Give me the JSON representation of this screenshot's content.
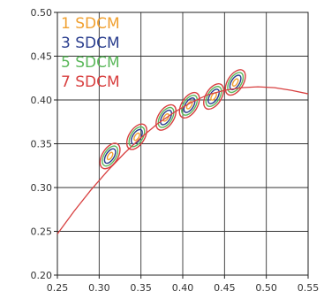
{
  "chart_data": {
    "type": "line",
    "title": "",
    "xlabel": "",
    "ylabel": "",
    "xlim": [
      0.25,
      0.55
    ],
    "ylim": [
      0.2,
      0.5
    ],
    "grid": true,
    "x_ticks": [
      "0.25",
      "0.30",
      "0.35",
      "0.40",
      "0.45",
      "0.50",
      "0.55"
    ],
    "y_ticks": [
      "0.20",
      "0.25",
      "0.30",
      "0.35",
      "0.40",
      "0.45",
      "0.50"
    ],
    "legend_position": "top-left",
    "legend": [
      {
        "label": "1 SDCM",
        "color": "#f0a030"
      },
      {
        "label": "3 SDCM",
        "color": "#2b3f8f"
      },
      {
        "label": "5 SDCM",
        "color": "#5bb85b"
      },
      {
        "label": "7 SDCM",
        "color": "#d84040"
      }
    ],
    "planckian_locus": {
      "color": "#d84040",
      "x": [
        0.25,
        0.27,
        0.29,
        0.31,
        0.33,
        0.35,
        0.37,
        0.39,
        0.41,
        0.43,
        0.45,
        0.47,
        0.49,
        0.51,
        0.53,
        0.55
      ],
      "y": [
        0.247,
        0.273,
        0.297,
        0.319,
        0.339,
        0.357,
        0.373,
        0.386,
        0.397,
        0.406,
        0.411,
        0.414,
        0.415,
        0.414,
        0.411,
        0.407
      ]
    },
    "ellipse_centers": [
      {
        "x": 0.313,
        "y": 0.336
      },
      {
        "x": 0.345,
        "y": 0.358
      },
      {
        "x": 0.38,
        "y": 0.38
      },
      {
        "x": 0.408,
        "y": 0.394
      },
      {
        "x": 0.437,
        "y": 0.404
      },
      {
        "x": 0.463,
        "y": 0.42
      }
    ]
  }
}
